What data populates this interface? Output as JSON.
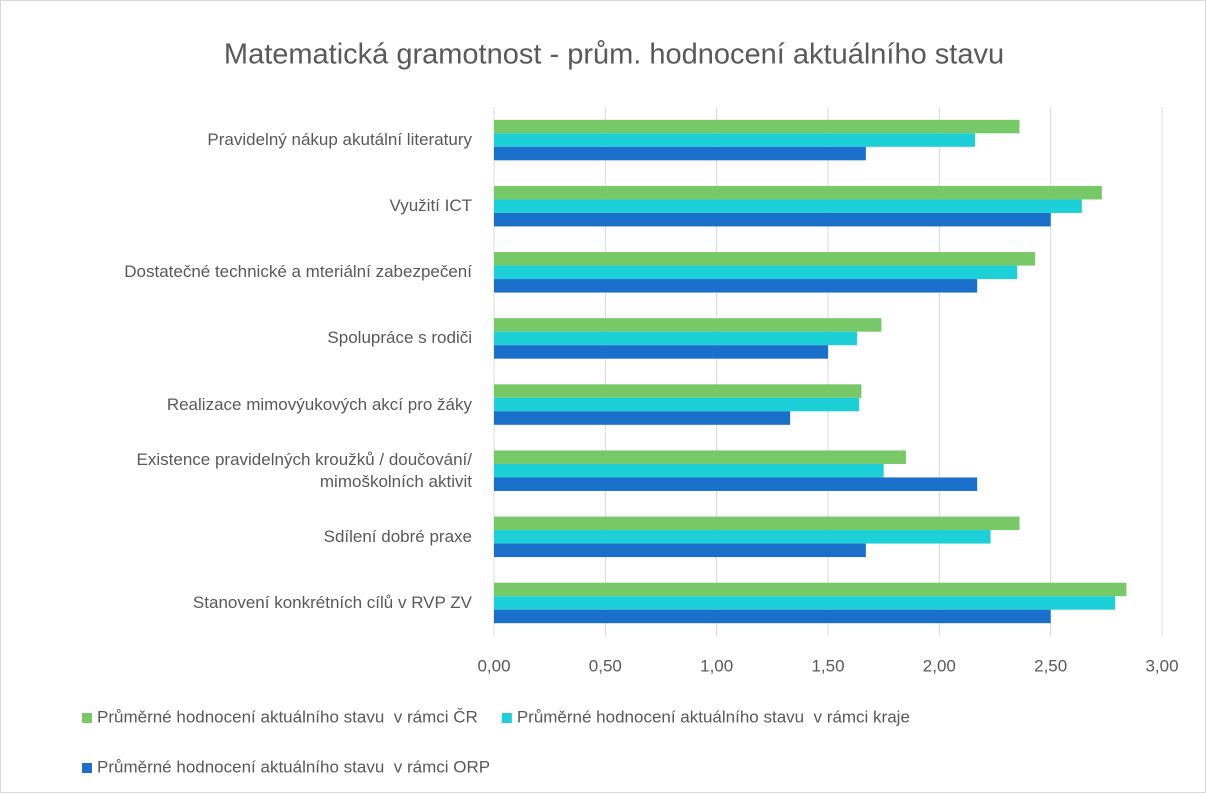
{
  "chart_data": {
    "type": "hbar",
    "title": "Matematická gramotnost - prům. hodnocení aktuálního stavu",
    "categories": [
      "Pravidelný nákup akutální literatury",
      "Využití ICT",
      "Dostatečné technické a mteriální zabezpečení",
      "Spolupráce s rodiči",
      "Realizace mimovýukových akcí pro žáky",
      "Existence pravidelných kroužků / doučování/\nmimoškolních aktivit",
      "Sdílení dobré praxe",
      "Stanovení konkrétních cílů v RVP ZV"
    ],
    "series": [
      {
        "name": "Průměrné hodnocení aktuálního stavu  v rámci ČR",
        "color": "#77c866",
        "values": [
          2.36,
          2.73,
          2.43,
          1.74,
          1.65,
          1.85,
          2.36,
          2.84
        ]
      },
      {
        "name": "Průměrné hodnocení aktuálního stavu  v rámci kraje",
        "color": "#1dcfd6",
        "values": [
          2.16,
          2.64,
          2.35,
          1.63,
          1.64,
          1.75,
          2.23,
          2.79
        ]
      },
      {
        "name": "Průměrné hodnocení aktuálního stavu  v rámci ORP",
        "color": "#1a6fcb",
        "values": [
          1.67,
          2.5,
          2.17,
          1.5,
          1.33,
          2.17,
          1.67,
          2.5
        ]
      }
    ],
    "xlim": [
      0,
      3
    ],
    "xticks": [
      {
        "value": 0,
        "label": "0,00"
      },
      {
        "value": 0.5,
        "label": "0,50"
      },
      {
        "value": 1,
        "label": "1,00"
      },
      {
        "value": 1.5,
        "label": "1,50"
      },
      {
        "value": 2,
        "label": "2,00"
      },
      {
        "value": 2.5,
        "label": "2,50"
      },
      {
        "value": 3,
        "label": "3,00"
      }
    ],
    "grid": true,
    "legend": "bottom"
  }
}
